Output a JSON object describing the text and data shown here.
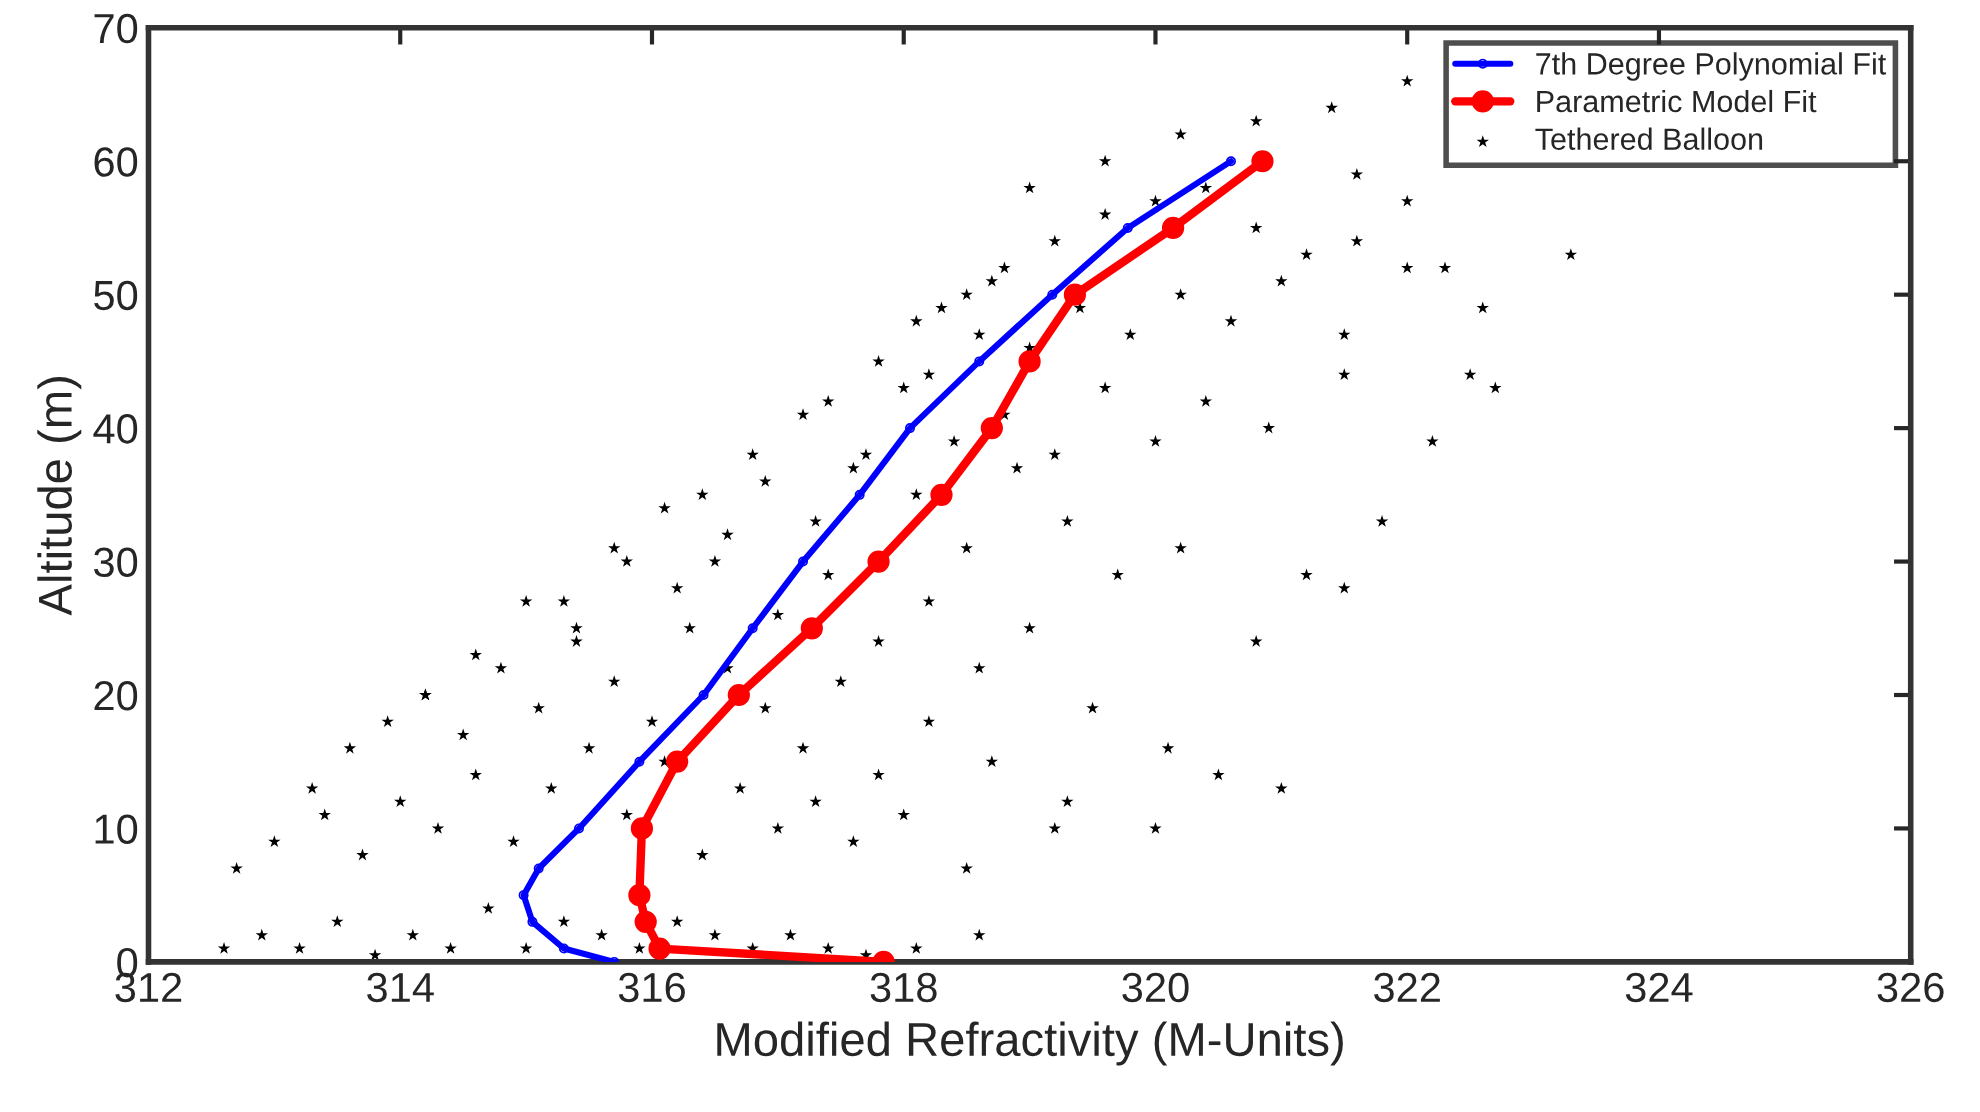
{
  "chart_data": {
    "type": "scatter",
    "xlabel": "Modified Refractivity (M-Units)",
    "ylabel": "Altitude (m)",
    "xlim": [
      312,
      326
    ],
    "ylim": [
      0,
      70
    ],
    "xticks": [
      312,
      314,
      316,
      318,
      320,
      322,
      324,
      326
    ],
    "yticks": [
      0,
      10,
      20,
      30,
      40,
      50,
      60,
      70
    ],
    "grid": false,
    "legend": "top right",
    "series": [
      {
        "name": "7th Degree Polynomial Fit",
        "type": "line",
        "marker": "circle",
        "color": "#0000ff",
        "x": [
          315.7,
          315.3,
          315.05,
          314.98,
          315.1,
          315.42,
          315.9,
          316.41,
          316.8,
          317.2,
          317.65,
          318.05,
          318.6,
          319.18,
          319.78,
          320.6
        ],
        "values": [
          0,
          1,
          3,
          5,
          7,
          10,
          15,
          20,
          25,
          30,
          35,
          40,
          45,
          50,
          55,
          60
        ]
      },
      {
        "name": "Parametric Model Fit",
        "type": "line",
        "marker": "circle",
        "color": "#ff0000",
        "x": [
          317.84,
          316.06,
          315.95,
          315.9,
          315.92,
          316.2,
          316.69,
          317.27,
          317.8,
          318.3,
          318.7,
          319.0,
          319.36,
          320.14,
          320.85
        ],
        "values": [
          0,
          1,
          3,
          5,
          10,
          15,
          20,
          25,
          30,
          35,
          40,
          45,
          50,
          55,
          60
        ]
      },
      {
        "name": "Tethered Balloon",
        "marker": "star",
        "color": "#000000",
        "x": [
          312.6,
          312.9,
          313.2,
          313.5,
          313.8,
          314.1,
          314.4,
          314.7,
          315.0,
          315.3,
          315.6,
          315.9,
          316.2,
          316.5,
          316.8,
          317.1,
          317.4,
          317.7,
          318.1,
          318.6,
          312.7,
          313.0,
          313.4,
          313.7,
          314.0,
          314.3,
          314.6,
          314.9,
          315.2,
          315.5,
          315.8,
          316.1,
          316.4,
          316.7,
          317.0,
          317.3,
          317.6,
          318.0,
          318.5,
          319.2,
          313.3,
          313.6,
          313.9,
          314.2,
          314.5,
          314.8,
          315.1,
          315.4,
          315.7,
          316.0,
          316.3,
          316.6,
          316.9,
          317.2,
          317.5,
          317.8,
          318.2,
          318.7,
          319.3,
          320.0,
          314.2,
          314.6,
          315.0,
          315.4,
          315.8,
          316.2,
          316.6,
          317.0,
          317.4,
          317.8,
          318.2,
          318.6,
          319.0,
          319.5,
          320.1,
          321.0,
          315.3,
          315.7,
          316.1,
          316.5,
          316.9,
          317.3,
          317.7,
          318.1,
          318.5,
          318.9,
          319.3,
          319.7,
          320.2,
          320.8,
          321.5,
          316.4,
          316.8,
          317.2,
          317.6,
          318.0,
          318.4,
          318.8,
          319.2,
          319.6,
          320.0,
          320.4,
          320.9,
          321.5,
          322.2,
          317.4,
          317.8,
          318.2,
          318.6,
          319.0,
          319.4,
          319.8,
          320.2,
          320.6,
          321.0,
          321.5,
          322.0,
          322.7,
          323.3,
          318.1,
          318.3,
          318.5,
          318.7,
          318.8,
          319.2,
          319.6,
          320.0,
          320.4,
          320.8,
          321.2,
          321.6,
          322.3,
          319.0,
          319.6,
          320.2,
          320.8,
          321.4,
          322.0,
          321.6,
          322.0,
          322.6,
          322.5,
          321.8,
          320.5,
          321.2
        ],
        "values": [
          1,
          2,
          1,
          3,
          0.5,
          2,
          1,
          4,
          1,
          3,
          2,
          1,
          3,
          2,
          1,
          2,
          1,
          0.5,
          1,
          2,
          7,
          9,
          11,
          8,
          12,
          10,
          14,
          9,
          13,
          16,
          11,
          15,
          8,
          13,
          10,
          12,
          9,
          11,
          7,
          10,
          13,
          16,
          18,
          20,
          17,
          22,
          19,
          24,
          21,
          18,
          25,
          22,
          19,
          16,
          21,
          14,
          18,
          15,
          12,
          10,
          20,
          23,
          27,
          25,
          30,
          28,
          32,
          26,
          29,
          24,
          27,
          22,
          25,
          19,
          16,
          13,
          27,
          31,
          34,
          30,
          36,
          33,
          38,
          35,
          31,
          37,
          33,
          29,
          31,
          24,
          28,
          35,
          38,
          41,
          37,
          43,
          39,
          41,
          38,
          43,
          39,
          42,
          40,
          44,
          39,
          42,
          45,
          44,
          47,
          46,
          49,
          47,
          50,
          48,
          51,
          47,
          52,
          43,
          53,
          48,
          49,
          50,
          51,
          52,
          54,
          56,
          57,
          58,
          55,
          53,
          54,
          52,
          58,
          60,
          62,
          63,
          64,
          66,
          59,
          57,
          49,
          44,
          33,
          14,
          29
        ]
      }
    ]
  }
}
